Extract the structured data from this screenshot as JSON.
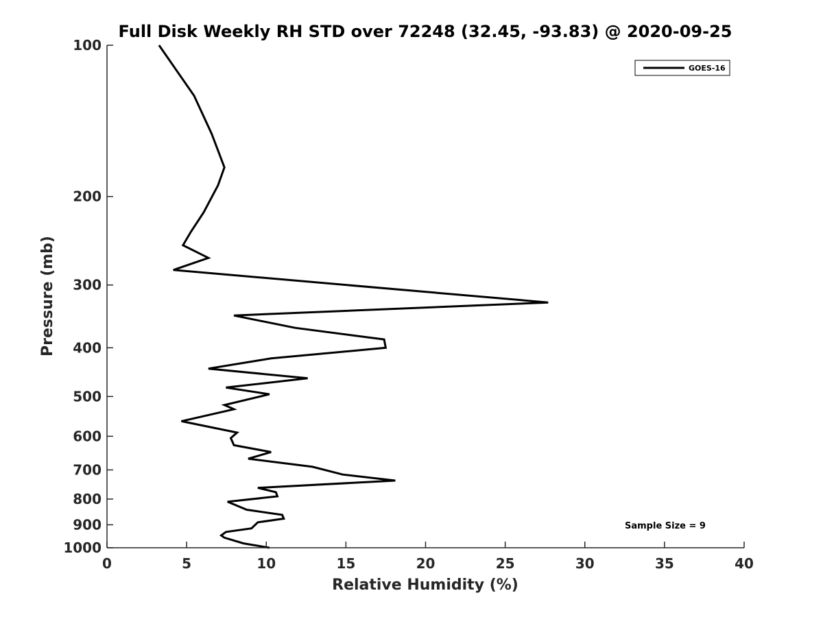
{
  "chart_data": {
    "type": "line",
    "title": "Full Disk Weekly RH STD over 72248 (32.45, -93.83) @ 2020-09-25",
    "xlabel": "Relative Humidity (%)",
    "ylabel": "Pressure (mb)",
    "xlim": [
      0,
      40
    ],
    "ylim": [
      100,
      1000
    ],
    "y_scale": "log",
    "y_direction": "reversed",
    "x_ticks": [
      0,
      5,
      10,
      15,
      20,
      25,
      30,
      35,
      40
    ],
    "x_tick_labels": [
      "0",
      "5",
      "10",
      "15",
      "20",
      "25",
      "30",
      "35",
      "40"
    ],
    "y_ticks": [
      100,
      200,
      300,
      400,
      500,
      600,
      700,
      800,
      900,
      1000
    ],
    "y_tick_labels": [
      "100",
      "200",
      "300",
      "400",
      "500",
      "600",
      "700",
      "800",
      "900",
      "1000"
    ],
    "grid": false,
    "legend": {
      "placement": "top-right",
      "entries": [
        "GOES-16"
      ]
    },
    "annotation": "Sample Size = 9",
    "series": [
      {
        "name": "GOES-16",
        "color": "#000000",
        "points": [
          [
            3.27,
            100
          ],
          [
            5.47,
            126
          ],
          [
            6.57,
            150
          ],
          [
            7.37,
            175
          ],
          [
            6.97,
            190
          ],
          [
            6.07,
            215
          ],
          [
            5.27,
            235
          ],
          [
            4.77,
            250
          ],
          [
            6.37,
            265
          ],
          [
            4.17,
            280
          ],
          [
            27.7,
            325
          ],
          [
            7.97,
            345
          ],
          [
            11.8,
            365
          ],
          [
            17.4,
            385
          ],
          [
            17.5,
            400
          ],
          [
            10.3,
            420
          ],
          [
            6.37,
            440
          ],
          [
            12.6,
            460
          ],
          [
            7.47,
            480
          ],
          [
            10.2,
            495
          ],
          [
            7.37,
            520
          ],
          [
            7.97,
            530
          ],
          [
            4.67,
            560
          ],
          [
            8.17,
            590
          ],
          [
            7.77,
            605
          ],
          [
            7.97,
            625
          ],
          [
            10.3,
            645
          ],
          [
            8.87,
            665
          ],
          [
            12.9,
            690
          ],
          [
            14.8,
            715
          ],
          [
            18.1,
            735
          ],
          [
            9.47,
            760
          ],
          [
            10.6,
            775
          ],
          [
            10.7,
            790
          ],
          [
            7.57,
            810
          ],
          [
            8.77,
            840
          ],
          [
            11.0,
            860
          ],
          [
            11.1,
            875
          ],
          [
            9.47,
            890
          ],
          [
            9.07,
            915
          ],
          [
            7.47,
            930
          ],
          [
            7.17,
            945
          ],
          [
            7.37,
            955
          ],
          [
            8.57,
            980
          ],
          [
            10.2,
            1000
          ]
        ]
      }
    ]
  }
}
